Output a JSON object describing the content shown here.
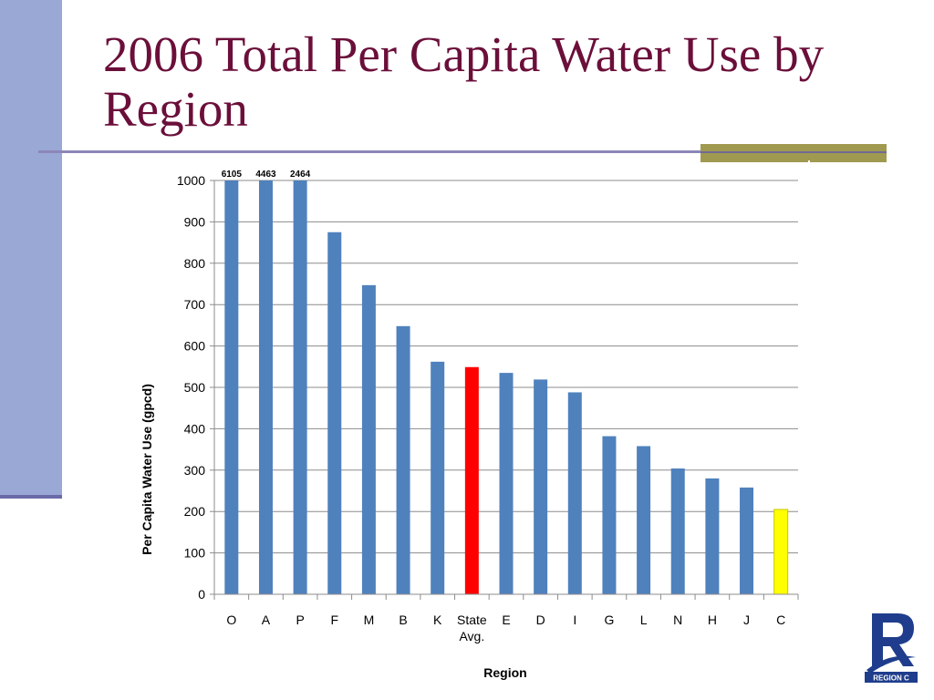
{
  "slide": {
    "title": "2006 Total Per Capita Water Use by Region"
  },
  "logo": {
    "text": "REGION C",
    "color": "#1f3d8c"
  },
  "colors": {
    "title": "#6b0f3a",
    "band": "#9aa8d6",
    "rule": "#8c86b8",
    "accent": "#a09a50",
    "bar_default": "#4f81bd",
    "bar_state_avg": "#ff0000",
    "bar_region_c": "#ffff00"
  },
  "chart_data": {
    "type": "bar",
    "title": "",
    "xlabel": "Region",
    "ylabel": "Per Capita Water Use (gpcd)",
    "ylim": [
      0,
      1000
    ],
    "yticks": [
      0,
      100,
      200,
      300,
      400,
      500,
      600,
      700,
      800,
      900,
      1000
    ],
    "grid": true,
    "legend": "none",
    "categories": [
      "O",
      "A",
      "P",
      "F",
      "M",
      "B",
      "K",
      "State Avg.",
      "E",
      "D",
      "I",
      "G",
      "L",
      "N",
      "H",
      "J",
      "C"
    ],
    "values": [
      6105,
      4463,
      2464,
      875,
      747,
      648,
      562,
      549,
      535,
      519,
      488,
      382,
      358,
      304,
      280,
      258,
      205
    ],
    "bar_colors": [
      "#4f81bd",
      "#4f81bd",
      "#4f81bd",
      "#4f81bd",
      "#4f81bd",
      "#4f81bd",
      "#4f81bd",
      "#ff0000",
      "#4f81bd",
      "#4f81bd",
      "#4f81bd",
      "#4f81bd",
      "#4f81bd",
      "#4f81bd",
      "#4f81bd",
      "#4f81bd",
      "#ffff00"
    ],
    "data_labels": [
      "6105",
      "4463",
      "2464",
      "",
      "",
      "",
      "",
      "",
      "",
      "",
      "",
      "",
      "",
      "",
      "",
      "",
      ""
    ]
  }
}
